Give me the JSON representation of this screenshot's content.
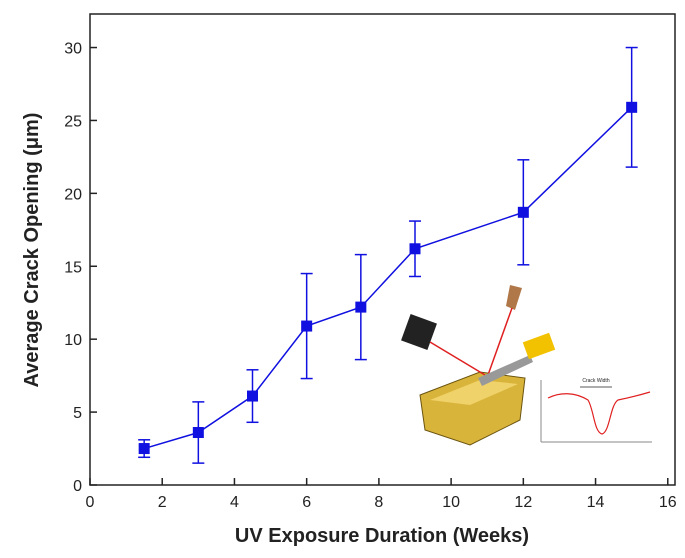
{
  "chart_data": {
    "type": "line",
    "x_label": "UV Exposure Duration (Weeks)",
    "y_label": "Average Crack Opening (μm)",
    "x": [
      1.5,
      3,
      4.5,
      6,
      7.5,
      9,
      12,
      15
    ],
    "series": [
      {
        "color": "#1010e0",
        "values": [
          2.5,
          3.6,
          6.1,
          10.9,
          12.2,
          16.2,
          18.7,
          25.9
        ],
        "errors": [
          0.6,
          2.1,
          1.8,
          3.6,
          3.6,
          1.9,
          3.6,
          4.1
        ]
      }
    ],
    "xlim": [
      0,
      16.2
    ],
    "ylim": [
      0,
      32.3
    ],
    "xticks": [
      0,
      2,
      4,
      6,
      8,
      10,
      12,
      14,
      16
    ],
    "yticks": [
      0,
      5,
      10,
      15,
      20,
      25,
      30
    ],
    "inset": {
      "crack_width_label": "Crack Width"
    }
  }
}
